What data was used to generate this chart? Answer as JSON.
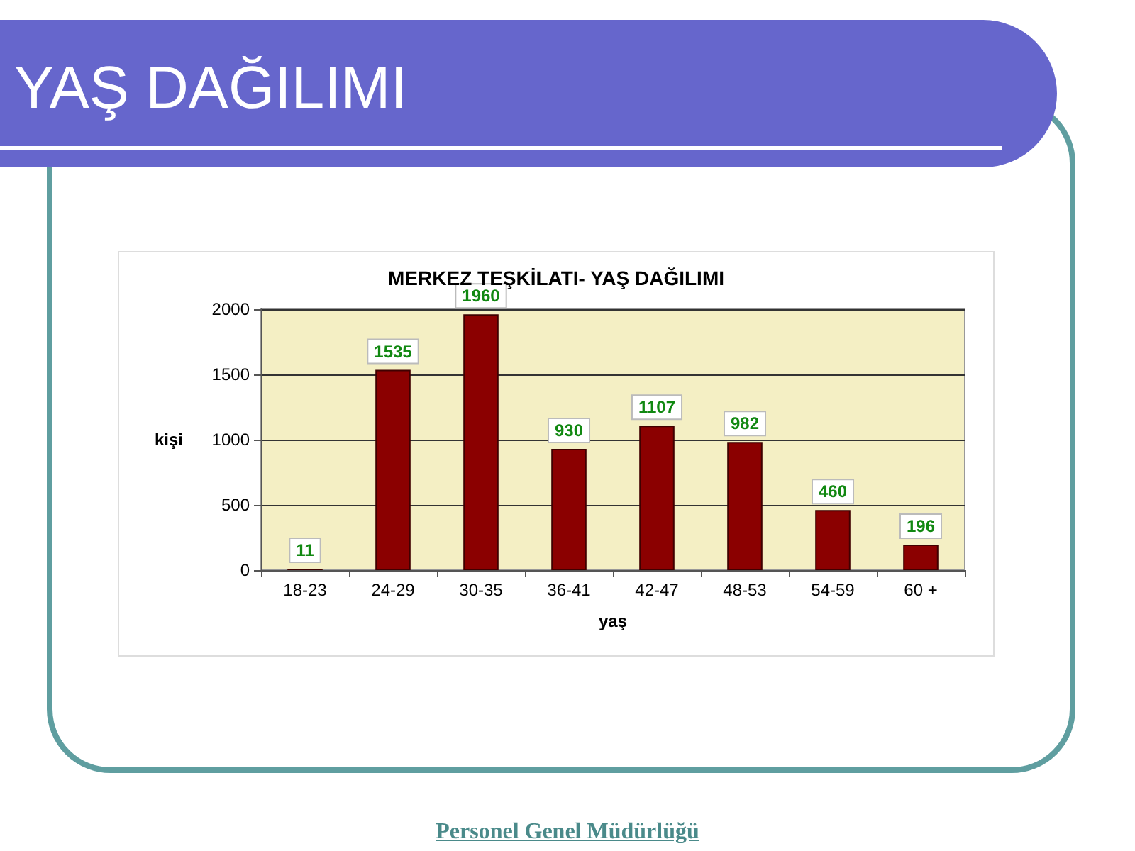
{
  "chart_data": {
    "type": "bar",
    "title": "YAŞ DAĞILIMI",
    "subtitle": "MERKEZ TEŞKİLATI- YAŞ DAĞILIMI",
    "xlabel": "yaş",
    "ylabel": "kişi",
    "categories": [
      "18-23",
      "24-29",
      "30-35",
      "36-41",
      "42-47",
      "48-53",
      "54-59",
      "60 +"
    ],
    "values": [
      11,
      1535,
      1960,
      930,
      1107,
      982,
      460,
      196
    ],
    "color": "#8b0000",
    "ylim": [
      0,
      2000
    ],
    "yticks": [
      0,
      500,
      1000,
      1500,
      2000
    ],
    "grid": "y",
    "data_labels": true,
    "annotations": [
      "Personel Genel Müdürlüğü"
    ]
  }
}
